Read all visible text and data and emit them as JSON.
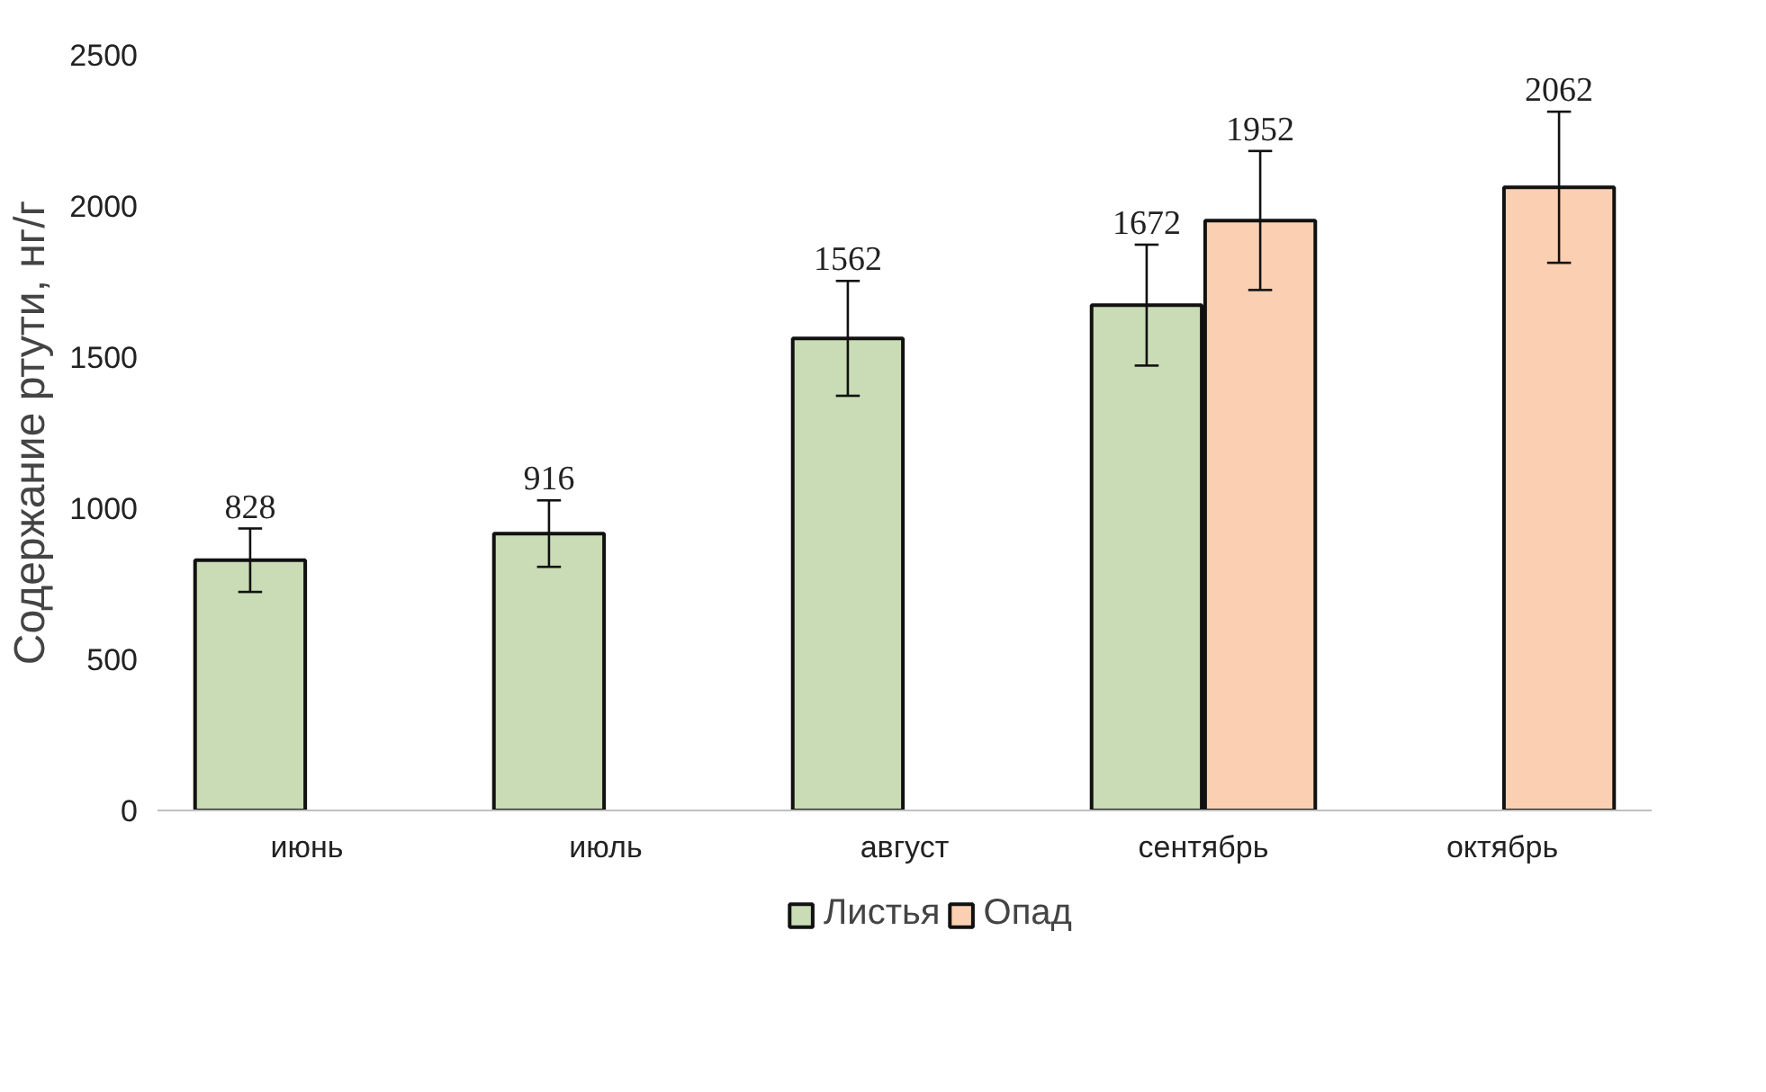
{
  "chart_data": {
    "type": "bar",
    "ylabel": "Содержание ртути, нг/г",
    "categories": [
      "июнь",
      "июль",
      "август",
      "сентябрь",
      "октябрь"
    ],
    "series": [
      {
        "name": "Листья",
        "color": "#c9dcb5",
        "values": [
          828,
          916,
          1562,
          1672,
          null
        ],
        "errors": [
          105,
          110,
          190,
          200,
          null
        ]
      },
      {
        "name": "Опад",
        "color": "#fbd0b2",
        "values": [
          null,
          null,
          null,
          1952,
          2062
        ],
        "errors": [
          null,
          null,
          null,
          230,
          250
        ]
      }
    ],
    "ylim": [
      0,
      2500
    ],
    "yticks": [
      0,
      500,
      1000,
      1500,
      2000,
      2500
    ],
    "grid": false,
    "legend": "bottom",
    "data_labels": true
  }
}
